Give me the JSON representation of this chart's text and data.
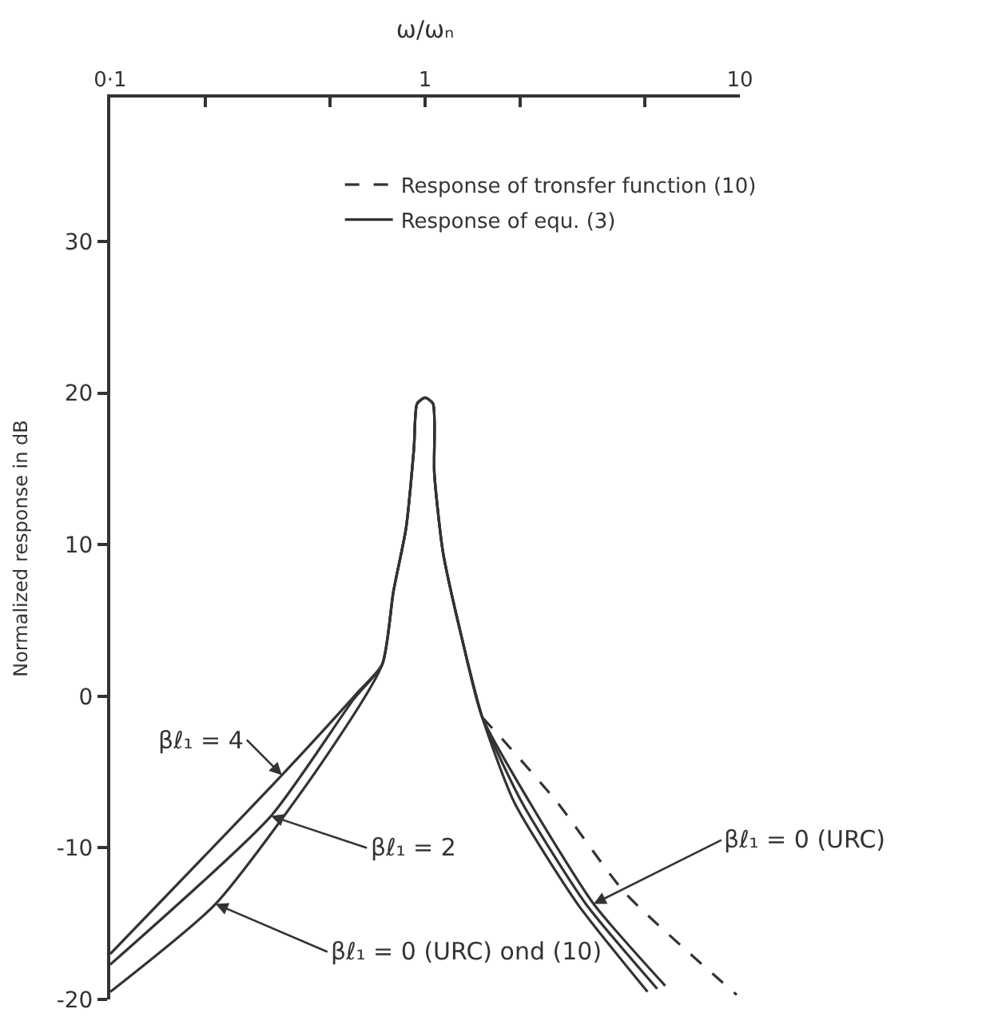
{
  "chart_data": {
    "type": "line",
    "xlabel": "ω/ωₙ",
    "ylabel": "Normalized response in dB",
    "log": "x",
    "xlim": [
      0.1,
      10
    ],
    "xticks": [
      {
        "value": 0.1,
        "label": "0·1"
      },
      {
        "value": 0.2,
        "label": null
      },
      {
        "value": 0.5,
        "label": null
      },
      1,
      {
        "value": 2,
        "label": null
      },
      {
        "value": 5,
        "label": null
      },
      10
    ],
    "ylim": [
      -20,
      39.5
    ],
    "yticks": [
      -20,
      -10,
      0,
      10,
      20,
      30
    ],
    "legend": "top right",
    "marker": "none",
    "series": [
      {
        "name": "Response of tronsfer function (10)",
        "color": "#333333",
        "line_style": "dashed",
        "x": [
          1.52,
          1.79,
          2.63,
          4.33,
          9.77
        ],
        "values": [
          -1.4,
          -3,
          -7,
          -13,
          -19.7
        ]
      },
      {
        "name": "Response of equ. (3)",
        "color": "#333333",
        "line_style": "solid",
        "x": [
          0.1,
          0.351,
          0.614,
          0.731,
          0.793,
          0.87,
          0.922,
          0.943,
          1.0,
          1.06,
          1.07,
          1.14,
          1.31,
          1.52,
          1.92,
          3.05,
          5.09
        ],
        "values": [
          -17,
          -5.2,
          0.3,
          2.1,
          6.9,
          11.1,
          16.4,
          19.3,
          19.7,
          19.3,
          14.7,
          9.5,
          3.8,
          -1.4,
          -7,
          -13.7,
          -19.5
        ]
      },
      {
        "color": "#333333",
        "line_style": "solid",
        "x": [
          0.1,
          0.324,
          0.593,
          0.731,
          0.793,
          0.87,
          0.922,
          0.943,
          1.0,
          1.06,
          1.07,
          1.14,
          1.31,
          1.52,
          2.03,
          3.24,
          5.46
        ],
        "values": [
          -17.7,
          -7.9,
          -0.2,
          2.1,
          6.9,
          11.1,
          16.4,
          19.3,
          19.7,
          19.3,
          14.7,
          9.5,
          3.8,
          -1.4,
          -7,
          -13.7,
          -19.3
        ]
      },
      {
        "color": "#333333",
        "line_style": "solid",
        "x": [
          0.1,
          0.216,
          0.459,
          0.731,
          0.793,
          0.87,
          0.922,
          0.943,
          1.0,
          1.06,
          1.07,
          1.14,
          1.31,
          1.52,
          2.15,
          3.43,
          5.79
        ],
        "values": [
          -19.5,
          -13.7,
          -4.7,
          2.1,
          6.9,
          11.1,
          16.4,
          19.3,
          19.7,
          19.3,
          14.7,
          9.5,
          3.8,
          -1.4,
          -7,
          -13.7,
          -19.1
        ]
      }
    ],
    "annotations": [
      {
        "text": "βℓ₁ = 4",
        "x": 0.351,
        "y": -5.2
      },
      {
        "text": "βℓ₁ = 2",
        "x": 0.324,
        "y": -7.9
      },
      {
        "text": "βℓ₁ = 0 (URC) ond (10)",
        "x": 0.216,
        "y": -13.7
      },
      {
        "text": "βℓ₁ = 0 (URC)",
        "x": 3.43,
        "y": -13.7
      }
    ]
  }
}
